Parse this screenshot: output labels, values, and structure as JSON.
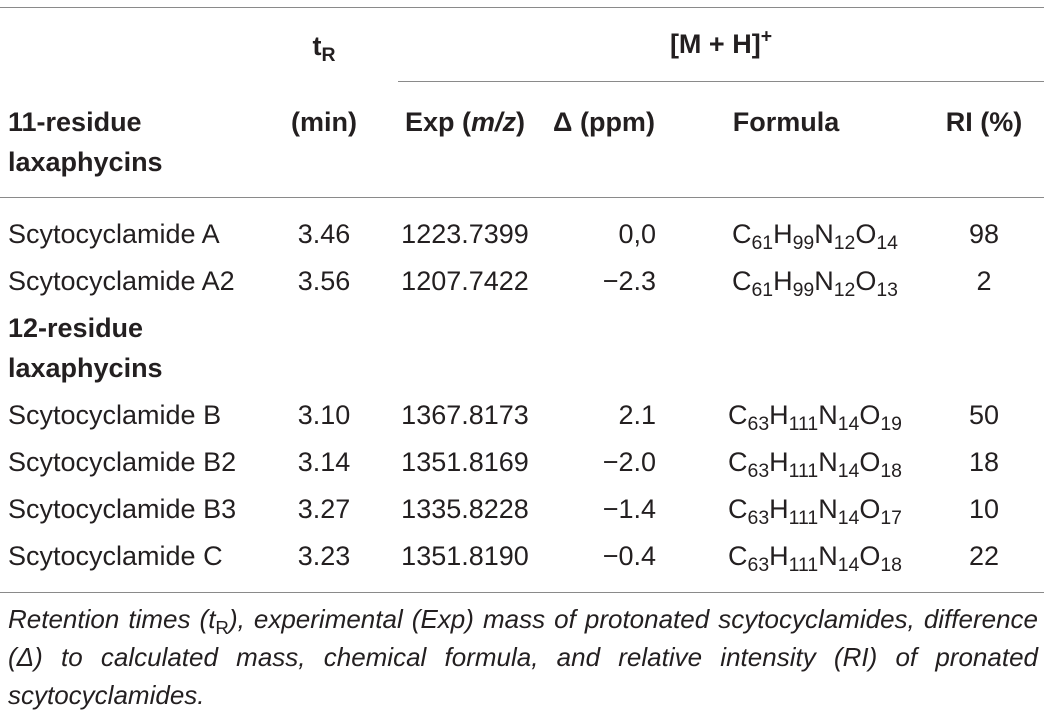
{
  "header": {
    "tr_main": "t",
    "tr_sub": "R",
    "tr_unit": "(min)",
    "group_label": "[M + H]",
    "group_sup": "+",
    "col_name": "11-residue laxaphycins",
    "col_name_line1": "11-residue",
    "col_name_line2": "laxaphycins",
    "col_exp_prefix": "Exp (",
    "col_exp_unit": "m/z",
    "col_exp_suffix": ")",
    "col_delta": "Δ (ppm)",
    "col_formula": "Formula",
    "col_ri": "RI (%)"
  },
  "section2": {
    "line1": "12-residue",
    "line2": "laxaphycins"
  },
  "rows": [
    {
      "name": "Scytocyclamide A",
      "tr": "3.46",
      "exp": "1223.7399",
      "delta": "0,0",
      "formula": {
        "c": "61",
        "h": "99",
        "n": "12",
        "o": "14"
      },
      "ri": "98"
    },
    {
      "name": "Scytocyclamide A2",
      "tr": "3.56",
      "exp": "1207.7422",
      "delta": "−2.3",
      "formula": {
        "c": "61",
        "h": "99",
        "n": "12",
        "o": "13"
      },
      "ri": "2"
    },
    {
      "name": "Scytocyclamide B",
      "tr": "3.10",
      "exp": "1367.8173",
      "delta": "2.1",
      "formula": {
        "c": "63",
        "h": "111",
        "n": "14",
        "o": "19"
      },
      "ri": "50"
    },
    {
      "name": "Scytocyclamide B2",
      "tr": "3.14",
      "exp": "1351.8169",
      "delta": "−2.0",
      "formula": {
        "c": "63",
        "h": "111",
        "n": "14",
        "o": "18"
      },
      "ri": "18"
    },
    {
      "name": "Scytocyclamide B3",
      "tr": "3.27",
      "exp": "1335.8228",
      "delta": "−1.4",
      "formula": {
        "c": "63",
        "h": "111",
        "n": "14",
        "o": "17"
      },
      "ri": "10"
    },
    {
      "name": "Scytocyclamide C",
      "tr": "3.23",
      "exp": "1351.8190",
      "delta": "−0.4",
      "formula": {
        "c": "63",
        "h": "111",
        "n": "14",
        "o": "18"
      },
      "ri": "22"
    }
  ],
  "caption": {
    "part1": "Retention times (t",
    "sub": "R",
    "part2": "), experimental (Exp) mass of protonated scytocyclamides, difference (Δ) to calculated mass, chemical formula, and relative intensity (RI) of pronated scytocyclamides."
  }
}
